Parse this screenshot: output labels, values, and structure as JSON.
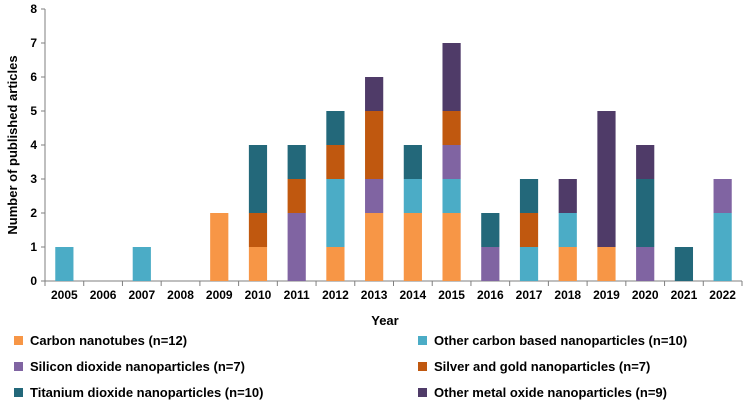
{
  "chart_data": {
    "type": "bar",
    "stacked": true,
    "title": "",
    "xlabel": "Year",
    "ylabel": "Number of published articles",
    "ylim": [
      0,
      8
    ],
    "yticks": [
      "0",
      "1",
      "2",
      "3",
      "4",
      "5",
      "6",
      "7",
      "8"
    ],
    "categories": [
      "2005",
      "2006",
      "2007",
      "2008",
      "2009",
      "2010",
      "2011",
      "2012",
      "2013",
      "2014",
      "2015",
      "2016",
      "2017",
      "2018",
      "2019",
      "2020",
      "2021",
      "2022"
    ],
    "series": [
      {
        "name": "Carbon nanotubes (n=12)",
        "color": "#F79646",
        "values": [
          0,
          0,
          0,
          0,
          2,
          1,
          0,
          1,
          2,
          2,
          2,
          0,
          0,
          1,
          1,
          0,
          0,
          0
        ]
      },
      {
        "name": "Other carbon based nanoparticles (n=10)",
        "color": "#4BACC6",
        "values": [
          1,
          0,
          1,
          0,
          0,
          0,
          0,
          2,
          0,
          1,
          1,
          0,
          1,
          1,
          0,
          0,
          0,
          2
        ]
      },
      {
        "name": "Silicon dioxide nanoparticles (n=7)",
        "color": "#8064A2",
        "values": [
          0,
          0,
          0,
          0,
          0,
          0,
          2,
          0,
          1,
          0,
          1,
          1,
          0,
          0,
          0,
          1,
          0,
          1
        ]
      },
      {
        "name": "Silver and gold nanoparticles (n=7)",
        "color": "#C0580F",
        "values": [
          0,
          0,
          0,
          0,
          0,
          1,
          1,
          1,
          2,
          0,
          1,
          0,
          1,
          0,
          0,
          0,
          0,
          0
        ]
      },
      {
        "name": "Titanium dioxide nanoparticles (n=10)",
        "color": "#23687A",
        "values": [
          0,
          0,
          0,
          0,
          0,
          2,
          1,
          1,
          0,
          1,
          0,
          1,
          1,
          0,
          0,
          2,
          1,
          0
        ]
      },
      {
        "name": "Other metal oxide nanoparticles (n=9)",
        "color": "#4F3B68",
        "values": [
          0,
          0,
          0,
          0,
          0,
          0,
          0,
          0,
          1,
          0,
          2,
          0,
          0,
          1,
          4,
          1,
          0,
          0
        ]
      }
    ],
    "legend_position": "bottom",
    "grid": false
  }
}
